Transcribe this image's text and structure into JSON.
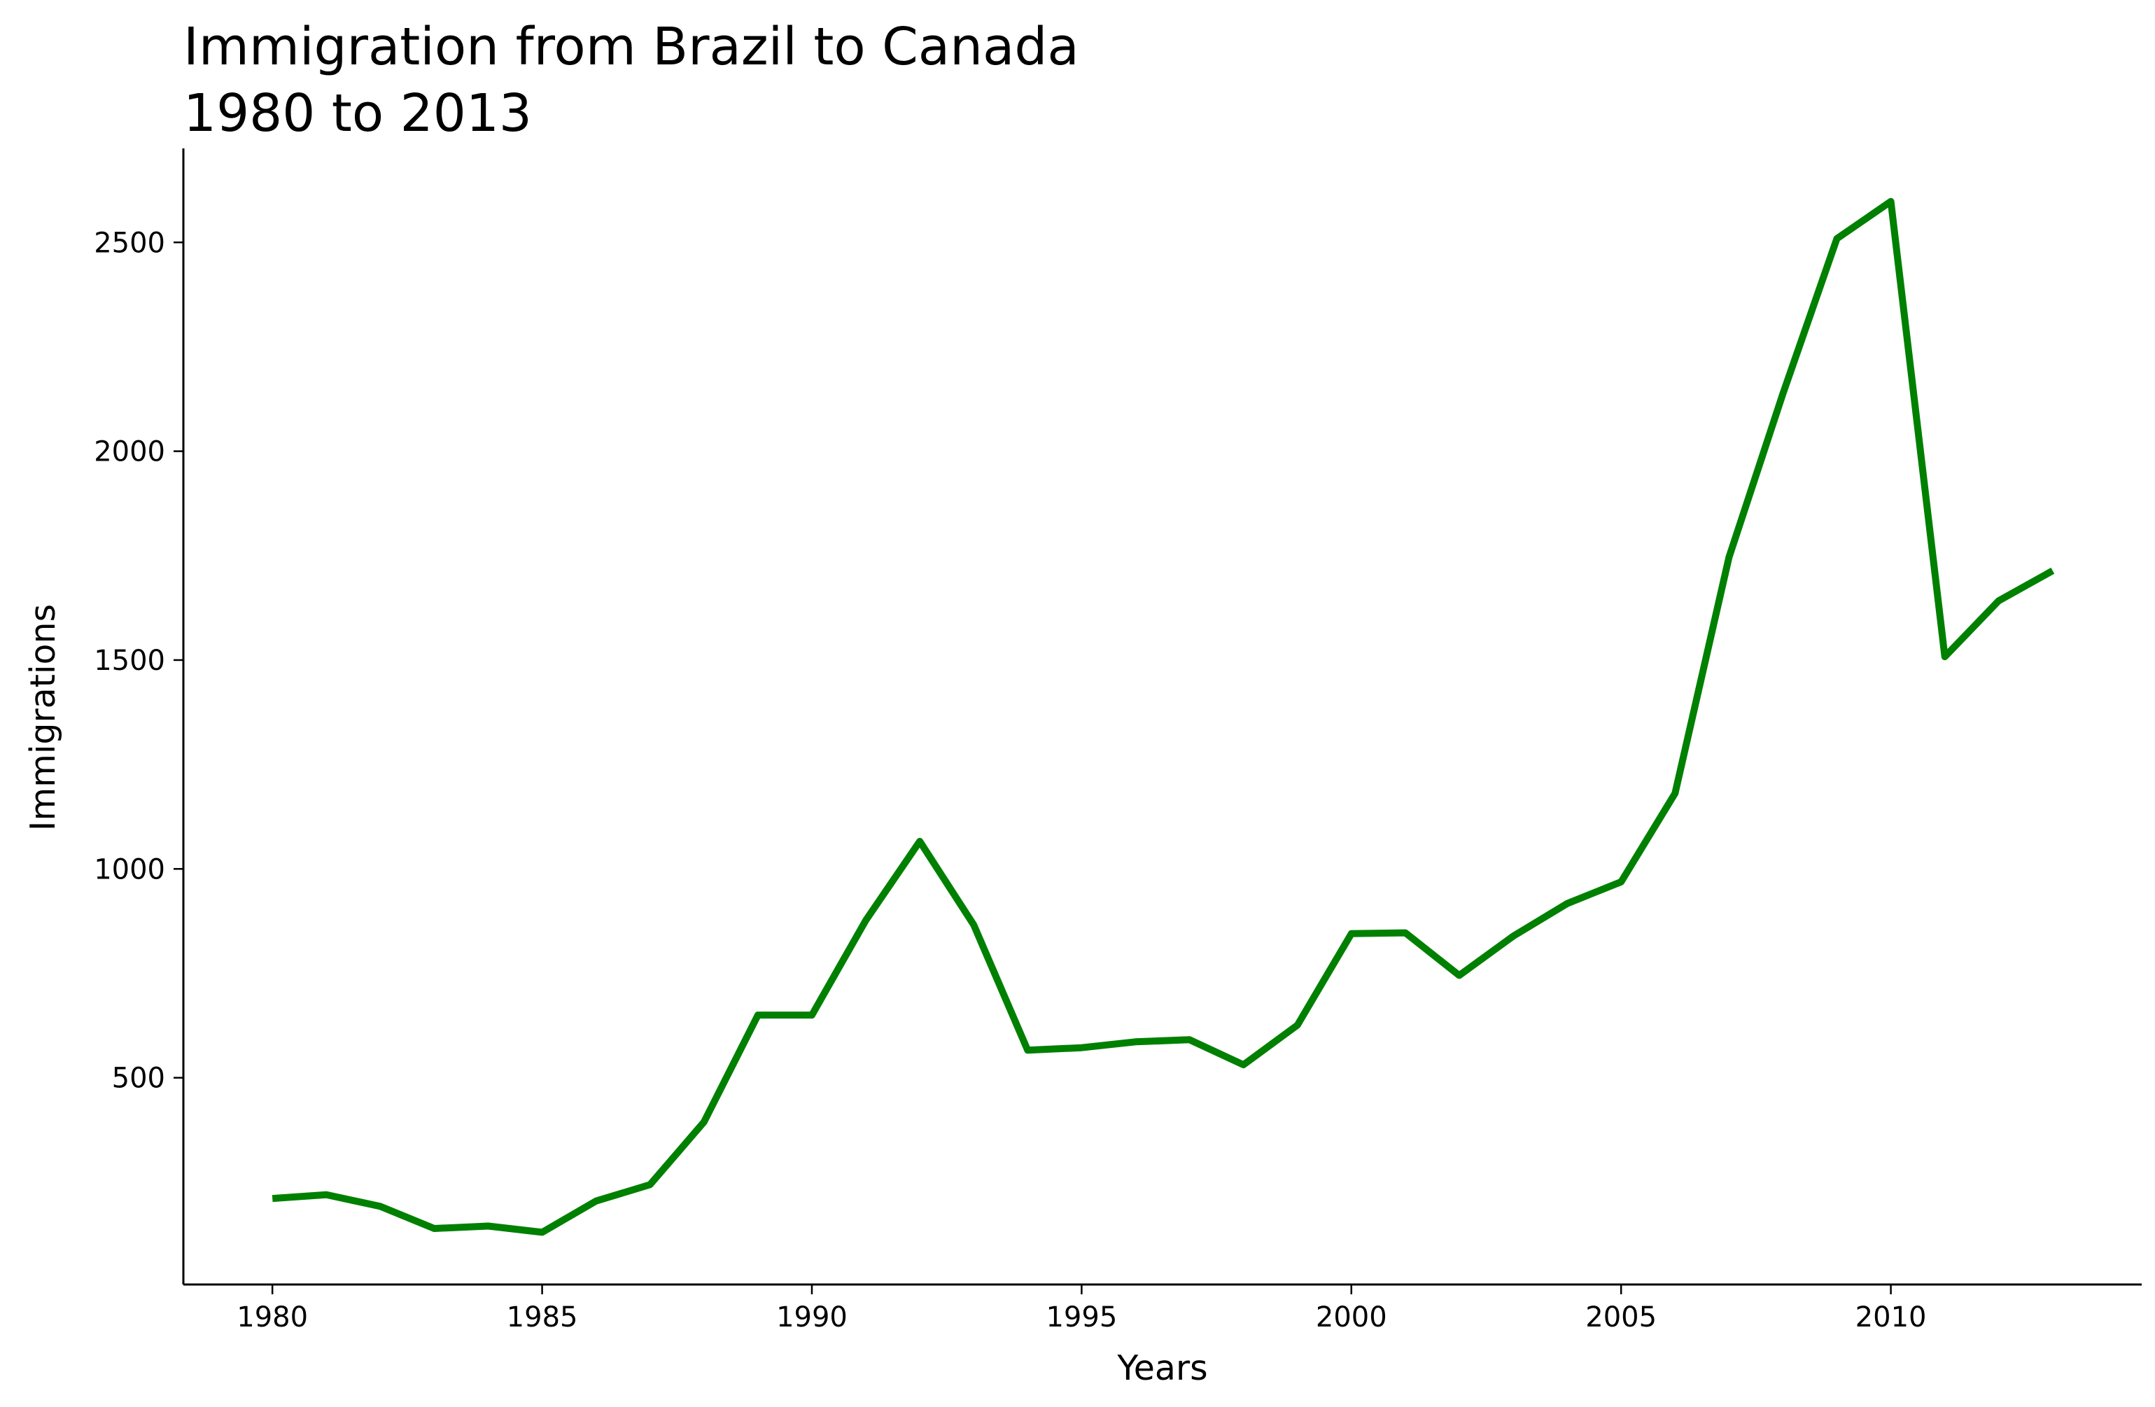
{
  "chart_data": {
    "type": "line",
    "title_lines": [
      "Immigration from Brazil to Canada",
      "1980 to 2013"
    ],
    "xlabel": "Years",
    "ylabel": "Immigrations",
    "xlim": [
      1978.35,
      2014.65
    ],
    "ylim": [
      5,
      2725
    ],
    "xticks": [
      1980,
      1985,
      1990,
      1995,
      2000,
      2005,
      2010
    ],
    "yticks": [
      500,
      1000,
      1500,
      2000,
      2500
    ],
    "grid": false,
    "legend": "none",
    "series": [
      {
        "color": "#008000",
        "x": [
          1980,
          1981,
          1982,
          1983,
          1984,
          1985,
          1986,
          1987,
          1988,
          1989,
          1990,
          1991,
          1992,
          1993,
          1994,
          1995,
          1996,
          1997,
          1998,
          1999,
          2000,
          2001,
          2002,
          2003,
          2004,
          2005,
          2006,
          2007,
          2008,
          2009,
          2010,
          2011,
          2012,
          2013
        ],
        "values": [
          211,
          220,
          192,
          139,
          145,
          130,
          205,
          244,
          394,
          650,
          650,
          877,
          1066,
          866,
          566,
          572,
          586,
          591,
          531,
          626,
          845,
          847,
          745,
          839,
          917,
          969,
          1181,
          1746,
          2138,
          2509,
          2598,
          1508,
          1642,
          1714
        ]
      }
    ]
  }
}
